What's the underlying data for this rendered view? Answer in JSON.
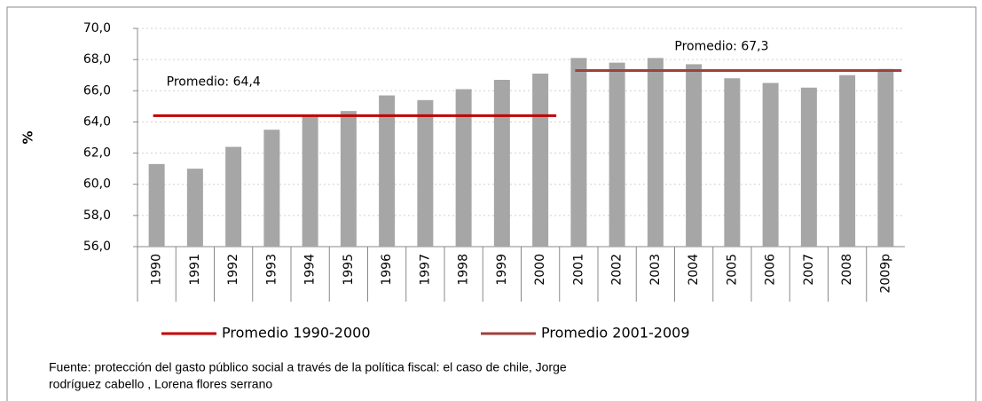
{
  "chart_data": {
    "type": "bar",
    "y_label": "%",
    "categories": [
      "1990",
      "1991",
      "1992",
      "1993",
      "1994",
      "1995",
      "1996",
      "1997",
      "1998",
      "1999",
      "2000",
      "2001",
      "2002",
      "2003",
      "2004",
      "2005",
      "2006",
      "2007",
      "2008",
      "2009p"
    ],
    "values": [
      61.3,
      61.0,
      62.4,
      63.5,
      64.4,
      64.7,
      65.7,
      65.4,
      66.1,
      66.7,
      67.1,
      68.1,
      67.8,
      68.1,
      67.7,
      66.8,
      66.5,
      66.2,
      67.0,
      67.4
    ],
    "color": "#a6a6a6",
    "ylim": [
      56,
      70
    ],
    "yticks": [
      {
        "value": 56,
        "label": "56,0"
      },
      {
        "value": 58,
        "label": "58,0"
      },
      {
        "value": 60,
        "label": "60,0"
      },
      {
        "value": 62,
        "label": "62,0"
      },
      {
        "value": 64,
        "label": "64,0"
      },
      {
        "value": 66,
        "label": "66,0"
      },
      {
        "value": 68,
        "label": "68,0"
      },
      {
        "value": 70,
        "label": "70,0"
      }
    ],
    "grid": true,
    "averages": [
      {
        "name": "Promedio 1990-2000",
        "color": "#c00000",
        "value": 64.4,
        "label": "Promedio: 64,4",
        "range": [
          "1990",
          "2000"
        ]
      },
      {
        "name": "Promedio 2001-2009",
        "color": "#a0403c",
        "value": 67.3,
        "label": "Promedio: 67,3",
        "range": [
          "2001",
          "2009p"
        ]
      }
    ],
    "source": [
      "Fuente: protección del gasto público social a través de la política fiscal: el caso de chile, Jorge",
      "rodríguez cabello , Lorena flores serrano"
    ]
  }
}
